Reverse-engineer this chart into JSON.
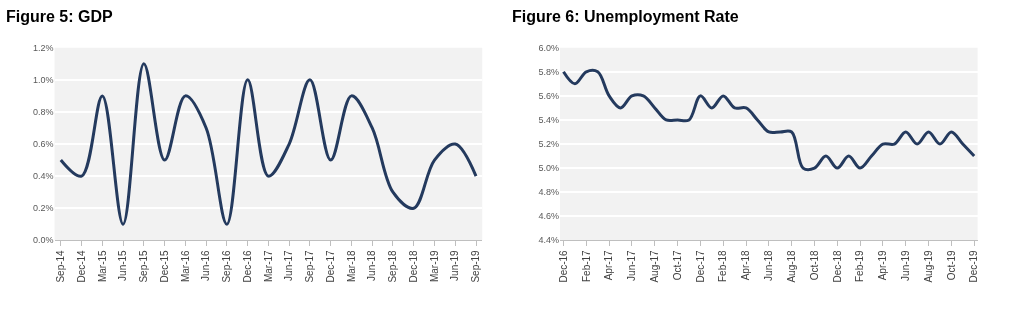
{
  "chart_data": [
    {
      "type": "line",
      "title": "Figure 5: GDP",
      "categories": [
        "Sep-14",
        "Dec-14",
        "Mar-15",
        "Jun-15",
        "Sep-15",
        "Dec-15",
        "Mar-16",
        "Jun-16",
        "Sep-16",
        "Dec-16",
        "Mar-17",
        "Jun-17",
        "Sep-17",
        "Dec-17",
        "Mar-18",
        "Jun-18",
        "Sep-18",
        "Dec-18",
        "Mar-19",
        "Jun-19",
        "Sep-19"
      ],
      "series": [
        {
          "color": "#243a5e",
          "values": [
            0.5,
            0.4,
            0.9,
            0.1,
            1.1,
            0.5,
            0.9,
            0.7,
            0.1,
            1.0,
            0.4,
            0.6,
            1.0,
            0.5,
            0.9,
            0.7,
            0.3,
            0.2,
            0.5,
            0.6,
            0.4
          ]
        }
      ],
      "ylim": [
        0,
        1.2
      ],
      "yticks": [
        {
          "value": 0,
          "label": "0.0%"
        },
        {
          "value": 0.2,
          "label": "0.2%"
        },
        {
          "value": 0.4,
          "label": "0.4%"
        },
        {
          "value": 0.6,
          "label": "0.6%"
        },
        {
          "value": 0.8,
          "label": "0.8%"
        },
        {
          "value": 1.0,
          "label": "1.0%"
        },
        {
          "value": 1.2,
          "label": "1.2%"
        }
      ],
      "grid": "y",
      "marker": "none",
      "line_style": "solid"
    },
    {
      "type": "line",
      "title": "Figure 6: Unemployment Rate",
      "categories": [
        "Dec-16",
        null,
        "Feb-17",
        null,
        "Apr-17",
        null,
        "Jun-17",
        null,
        "Aug-17",
        null,
        "Oct-17",
        null,
        "Dec-17",
        null,
        "Feb-18",
        null,
        "Apr-18",
        null,
        "Jun-18",
        null,
        "Aug-18",
        null,
        "Oct-18",
        null,
        "Dec-18",
        null,
        "Feb-19",
        null,
        "Apr-19",
        null,
        "Jun-19",
        null,
        "Aug-19",
        null,
        "Oct-19",
        null,
        "Dec-19"
      ],
      "series": [
        {
          "color": "#243a5e",
          "values": [
            5.8,
            5.7,
            5.8,
            5.8,
            5.6,
            5.5,
            5.6,
            5.6,
            5.5,
            5.4,
            5.4,
            5.4,
            5.6,
            5.5,
            5.6,
            5.5,
            5.5,
            5.4,
            5.3,
            5.3,
            5.3,
            5.0,
            5.0,
            5.1,
            5.0,
            5.1,
            5.0,
            5.1,
            5.2,
            5.2,
            5.3,
            5.2,
            5.3,
            5.2,
            5.3,
            5.2,
            5.1
          ]
        }
      ],
      "ylim": [
        4.4,
        6.0
      ],
      "yticks": [
        {
          "value": 4.4,
          "label": "4.4%"
        },
        {
          "value": 4.6,
          "label": "4.6%"
        },
        {
          "value": 4.8,
          "label": "4.8%"
        },
        {
          "value": 5.0,
          "label": "5.0%"
        },
        {
          "value": 5.2,
          "label": "5.2%"
        },
        {
          "value": 5.4,
          "label": "5.4%"
        },
        {
          "value": 5.6,
          "label": "5.6%"
        },
        {
          "value": 5.8,
          "label": "5.8%"
        },
        {
          "value": 6.0,
          "label": "6.0%"
        }
      ],
      "grid": "y",
      "marker": "none",
      "line_style": "solid"
    }
  ]
}
